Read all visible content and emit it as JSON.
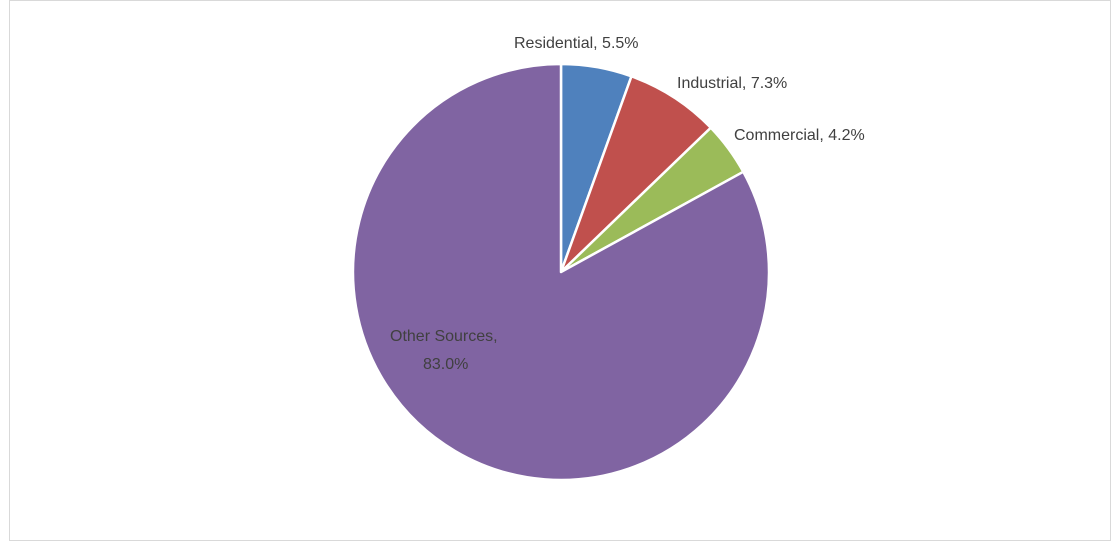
{
  "chart_data": {
    "type": "pie",
    "title": "",
    "slices": [
      {
        "label": "Residential",
        "value": 5.5,
        "display": "Residential, 5.5%",
        "color": "#4f81bd"
      },
      {
        "label": "Industrial",
        "value": 7.3,
        "display": "Industrial, 7.3%",
        "color": "#c0504d"
      },
      {
        "label": "Commercial",
        "value": 4.2,
        "display": "Commercial, 4.2%",
        "color": "#9bbb59"
      },
      {
        "label": "Other Sources",
        "value": 83.0,
        "display_lines": [
          "Other Sources,",
          "83.0%"
        ],
        "color": "#8064a2"
      }
    ],
    "start_angle": "12 o'clock",
    "direction": "clockwise",
    "legend": "none"
  }
}
